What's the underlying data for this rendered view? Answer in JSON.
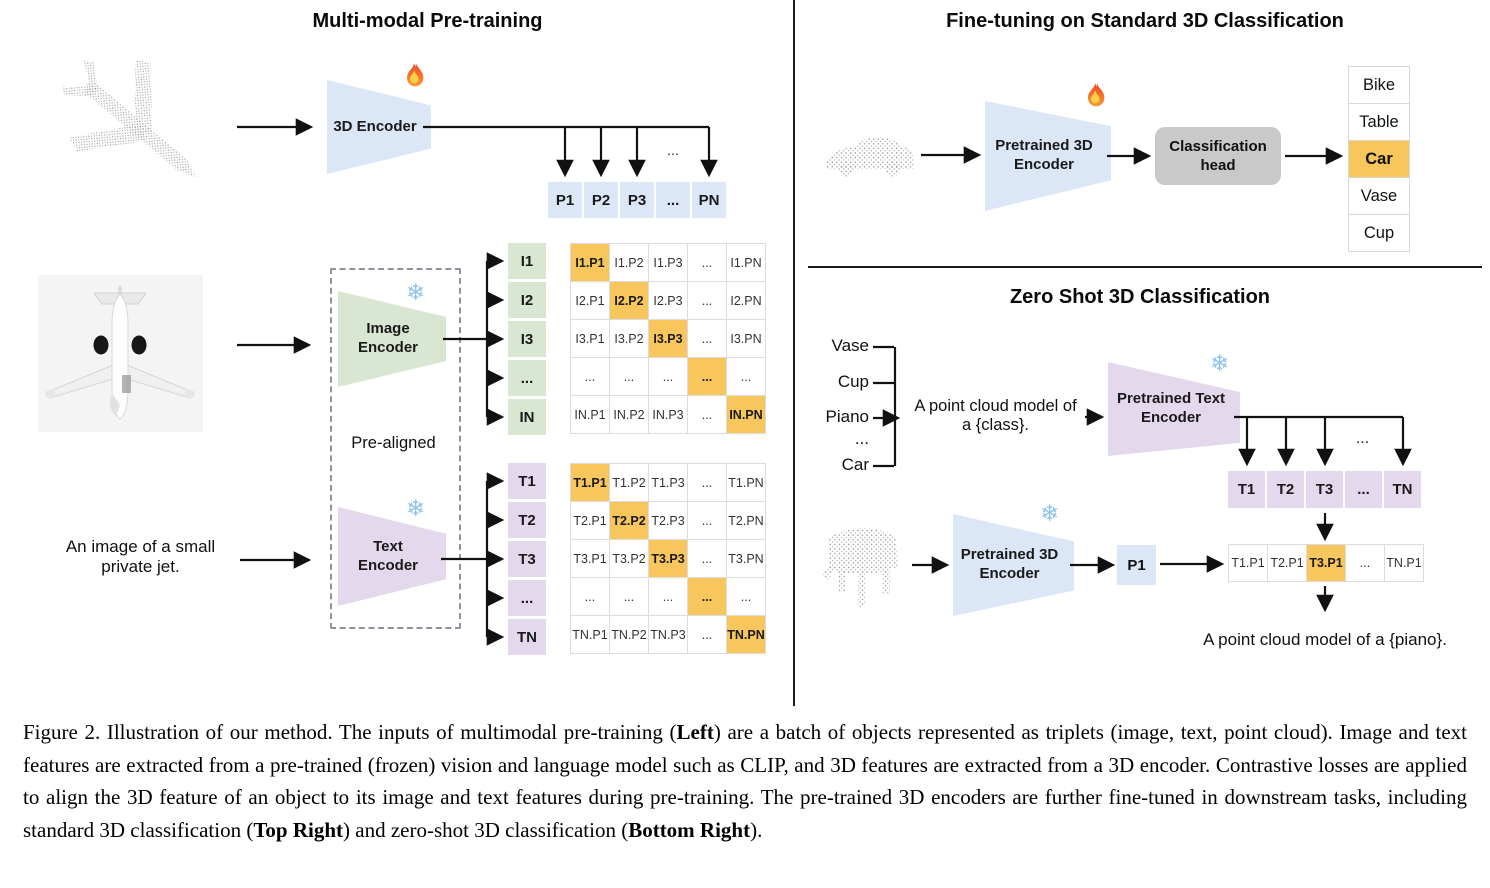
{
  "colors": {
    "blue": "#DBE6F6",
    "green": "#D9E7D2",
    "purple": "#E4D8EC",
    "orange": "#F7C65D",
    "head-gray": "#C9C9C9"
  },
  "icons": {
    "snowflake_glyph": "❄",
    "fire": "flame (trainable)",
    "snowflake": "snowflake (frozen)"
  },
  "left": {
    "title": "Multi-modal Pre-training",
    "encoder_3d_label": "3D Encoder",
    "image_encoder_label": "Image\nEncoder",
    "text_encoder_label": "Text\nEncoder",
    "pre_aligned_label": "Pre-aligned",
    "image_caption": "An image of a small\nprivate jet.",
    "ellipsis": "...",
    "p_row": {
      "rows": [
        [
          "P1",
          "P2",
          "P3",
          "...",
          "PN"
        ]
      ]
    },
    "i_col": {
      "rows": [
        [
          "I1"
        ],
        [
          "I2"
        ],
        [
          "I3"
        ],
        [
          "..."
        ],
        [
          "IN"
        ]
      ]
    },
    "t_col": {
      "rows": [
        [
          "T1"
        ],
        [
          "T2"
        ],
        [
          "T3"
        ],
        [
          "..."
        ],
        [
          "TN"
        ]
      ]
    },
    "image_matrix": {
      "rows": [
        [
          "I1.P1",
          "I1.P2",
          "I1.P3",
          "...",
          "I1.PN"
        ],
        [
          "I2.P1",
          "I2.P2",
          "I2.P3",
          "...",
          "I2.PN"
        ],
        [
          "I3.P1",
          "I3.P2",
          "I3.P3",
          "...",
          "I3.PN"
        ],
        [
          "...",
          "...",
          "...",
          "...",
          "..."
        ],
        [
          "IN.P1",
          "IN.P2",
          "IN.P3",
          "...",
          "IN.PN"
        ]
      ],
      "highlights": [
        [
          0,
          0
        ],
        [
          1,
          1
        ],
        [
          2,
          2
        ],
        [
          3,
          3
        ],
        [
          4,
          4
        ]
      ]
    },
    "text_matrix": {
      "rows": [
        [
          "T1.P1",
          "T1.P2",
          "T1.P3",
          "...",
          "T1.PN"
        ],
        [
          "T2.P1",
          "T2.P2",
          "T2.P3",
          "...",
          "T2.PN"
        ],
        [
          "T3.P1",
          "T3.P2",
          "T3.P3",
          "...",
          "T3.PN"
        ],
        [
          "...",
          "...",
          "...",
          "...",
          "..."
        ],
        [
          "TN.P1",
          "TN.P2",
          "TN.P3",
          "...",
          "TN.PN"
        ]
      ],
      "highlights": [
        [
          0,
          0
        ],
        [
          1,
          1
        ],
        [
          2,
          2
        ],
        [
          3,
          3
        ],
        [
          4,
          4
        ]
      ]
    }
  },
  "top_right": {
    "title": "Fine-tuning on Standard 3D Classification",
    "encoder_label": "Pretrained 3D\nEncoder",
    "head_label": "Classification\nhead",
    "class_list": {
      "rows": [
        [
          "Bike"
        ],
        [
          "Table"
        ],
        [
          "Car"
        ],
        [
          "Vase"
        ],
        [
          "Cup"
        ]
      ],
      "highlights": [
        [
          2,
          0
        ]
      ]
    }
  },
  "bottom_right": {
    "title": "Zero Shot 3D Classification",
    "classes": [
      "Vase",
      "Cup",
      "Piano",
      "...",
      "Car"
    ],
    "prompt": "A point cloud model of\na {class}.",
    "text_encoder_label": "Pretrained Text\nEncoder",
    "encoder_label": "Pretrained 3D\nEncoder",
    "p1_label": "P1",
    "ellipsis": "...",
    "t_row": {
      "rows": [
        [
          "T1",
          "T2",
          "T3",
          "...",
          "TN"
        ]
      ]
    },
    "result_row": {
      "rows": [
        [
          "T1.P1",
          "T2.P1",
          "T3.P1",
          "...",
          "TN.P1"
        ]
      ],
      "highlights": [
        [
          0,
          2
        ]
      ]
    },
    "result_text": "A point cloud model of a {piano}."
  },
  "caption": {
    "segments": [
      {
        "text": "Figure 2. Illustration of our method. The inputs of multimodal pre-training (",
        "bold": false
      },
      {
        "text": "Left",
        "bold": true
      },
      {
        "text": ") are a batch of objects represented as triplets (image, text, point cloud). Image and text features are extracted from a pre-trained (frozen) vision and language model such as CLIP, and 3D features are extracted from a 3D encoder. Contrastive losses are applied to align the 3D feature of an object to its image and text features during pre-training. The pre-trained 3D encoders are further fine-tuned in downstream tasks, including standard 3D classification (",
        "bold": false
      },
      {
        "text": "Top Right",
        "bold": true
      },
      {
        "text": ") and zero-shot 3D classification (",
        "bold": false
      },
      {
        "text": "Bottom Right",
        "bold": true
      },
      {
        "text": ").",
        "bold": false
      }
    ]
  }
}
